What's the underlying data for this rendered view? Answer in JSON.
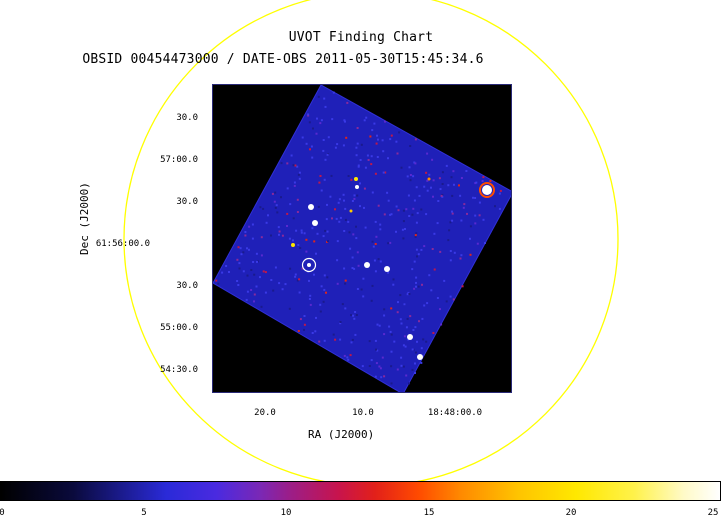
{
  "title": "UVOT Finding Chart",
  "subtitle": "OBSID 00454473000 / DATE-OBS 2011-05-30T15:45:34.6",
  "axes": {
    "y_label": "Dec (J2000)",
    "x_label": "RA (J2000)",
    "dec_ticks": [
      "30.0",
      "57:00.0",
      "30.0",
      "61:56:00.0",
      "30.0",
      "55:00.0",
      "54:30.0"
    ],
    "ra_ticks": [
      "20.0",
      "10.0",
      "18:48:00.0"
    ]
  },
  "colorbar": {
    "ticks": [
      "0",
      "5",
      "10",
      "15",
      "20",
      "25"
    ],
    "range": [
      0,
      25
    ]
  },
  "colors": {
    "circle": "#ffff00",
    "field_background": "#1f20b8",
    "image_background": "#000000",
    "target_marker": "#ffffff"
  }
}
